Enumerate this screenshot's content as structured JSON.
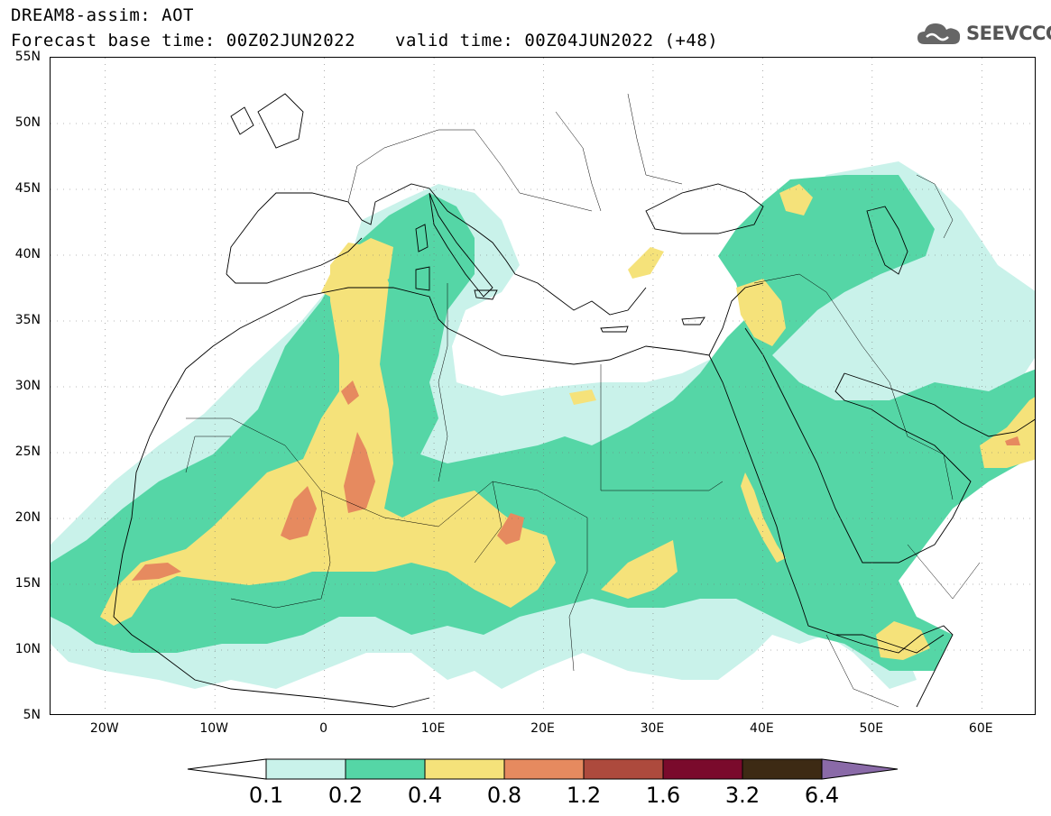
{
  "header": {
    "title": "DREAM8-assim: AOT",
    "base_time": "Forecast base time: 00Z02JUN2022",
    "valid_time": "valid time: 00Z04JUN2022 (+48)"
  },
  "logo": {
    "text": "SEEVCCC",
    "icon": "cloud-icon"
  },
  "map": {
    "lon_range": [
      -25,
      65
    ],
    "lat_range": [
      5,
      55
    ],
    "lat_labels": [
      {
        "value": 55,
        "label": "55N"
      },
      {
        "value": 50,
        "label": "50N"
      },
      {
        "value": 45,
        "label": "45N"
      },
      {
        "value": 40,
        "label": "40N"
      },
      {
        "value": 35,
        "label": "35N"
      },
      {
        "value": 30,
        "label": "30N"
      },
      {
        "value": 25,
        "label": "25N"
      },
      {
        "value": 20,
        "label": "20N"
      },
      {
        "value": 15,
        "label": "15N"
      },
      {
        "value": 10,
        "label": "10N"
      },
      {
        "value": 5,
        "label": "5N"
      }
    ],
    "lon_labels": [
      {
        "value": -20,
        "label": "20W"
      },
      {
        "value": -10,
        "label": "10W"
      },
      {
        "value": 0,
        "label": "0"
      },
      {
        "value": 10,
        "label": "10E"
      },
      {
        "value": 20,
        "label": "20E"
      },
      {
        "value": 30,
        "label": "30E"
      },
      {
        "value": 40,
        "label": "40E"
      },
      {
        "value": 50,
        "label": "50E"
      },
      {
        "value": 60,
        "label": "60E"
      }
    ],
    "grid": "dotted"
  },
  "colorbar": {
    "levels": [
      "0.1",
      "0.2",
      "0.4",
      "0.8",
      "1.2",
      "1.6",
      "3.2",
      "6.4"
    ],
    "colors": [
      "#ffffff",
      "#c9f2ea",
      "#55d6a6",
      "#f5e27a",
      "#e68a5f",
      "#ad4a3d",
      "#7a0a2c",
      "#3d2a14",
      "#8a6aa8"
    ]
  }
}
